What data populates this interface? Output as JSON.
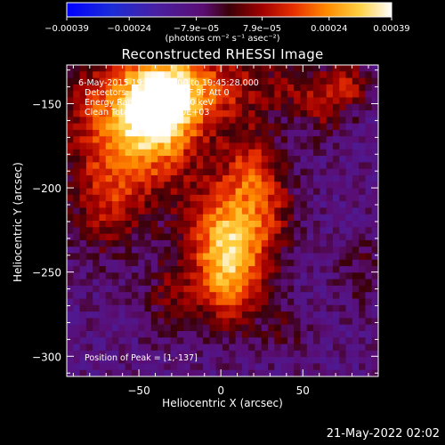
{
  "chart_data": {
    "type": "heatmap",
    "title": "Reconstructed RHESSI Image",
    "xlabel": "Heliocentric X (arcsec)",
    "ylabel": "Heliocentric Y (arcsec)",
    "xlim": [
      -94,
      96
    ],
    "ylim": [
      -312,
      -127
    ],
    "xticks": [
      {
        "value": -50,
        "label": "−50"
      },
      {
        "value": 0,
        "label": "0"
      },
      {
        "value": 50,
        "label": "50"
      }
    ],
    "yticks": [
      {
        "value": -150,
        "label": "−150"
      },
      {
        "value": -200,
        "label": "−200"
      },
      {
        "value": -250,
        "label": "−250"
      },
      {
        "value": -300,
        "label": "−300"
      }
    ],
    "colorbar": {
      "range": [
        -0.00039,
        0.00039
      ],
      "ticks": [
        {
          "value": -0.00039,
          "label": "−0.00039"
        },
        {
          "value": -0.00024,
          "label": "−0.00024"
        },
        {
          "value": -7.9e-05,
          "label": "−7.9e−05"
        },
        {
          "value": 7.9e-05,
          "label": "7.9e−05"
        },
        {
          "value": 0.00024,
          "label": "0.00024"
        },
        {
          "value": 0.00039,
          "label": "0.00039"
        }
      ],
      "unit_label": "(photons cm⁻² s⁻¹ asec⁻²)"
    },
    "annotations": [
      "6-May-2015 19:39:28.000 to 19:45:28.000",
      "Detectors: 3F 5F 6F 7F 8F 9F  Att 0",
      "Energy Range: 12.0 - 25.0 keV",
      "Clean     Total counts: 8.00E+03"
    ],
    "peak_label": "Position of Peak = [1,-137]",
    "features": [
      {
        "x": -55,
        "y": -165,
        "sx": 26,
        "sy": 30,
        "w": 0.55
      },
      {
        "x": -35,
        "y": -150,
        "sx": 14,
        "sy": 18,
        "w": 0.45
      },
      {
        "x": -10,
        "y": -140,
        "sx": 30,
        "sy": 18,
        "w": 0.35
      },
      {
        "x": 5,
        "y": -225,
        "sx": 17,
        "sy": 25,
        "w": 0.5
      },
      {
        "x": 5,
        "y": -255,
        "sx": 14,
        "sy": 20,
        "w": 0.35
      },
      {
        "x": 30,
        "y": -210,
        "sx": 12,
        "sy": 20,
        "w": 0.2
      },
      {
        "x": 18,
        "y": -185,
        "sx": 10,
        "sy": 15,
        "w": 0.2
      },
      {
        "x": 62,
        "y": -148,
        "sx": 10,
        "sy": 14,
        "w": 0.25
      },
      {
        "x": 80,
        "y": -138,
        "sx": 8,
        "sy": 10,
        "w": 0.25
      },
      {
        "x": 40,
        "y": -140,
        "sx": 8,
        "sy": 8,
        "w": 0.15
      },
      {
        "x": -70,
        "y": -215,
        "sx": 14,
        "sy": 18,
        "w": 0.2
      },
      {
        "x": -30,
        "y": -265,
        "sx": 12,
        "sy": 16,
        "w": 0.18
      },
      {
        "x": 85,
        "y": -250,
        "sx": 9,
        "sy": 14,
        "w": 0.12
      },
      {
        "x": 40,
        "y": -285,
        "sx": 10,
        "sy": 10,
        "w": 0.12
      }
    ],
    "background_level": -0.22
  },
  "timestamp": "21-May-2022 02:02"
}
